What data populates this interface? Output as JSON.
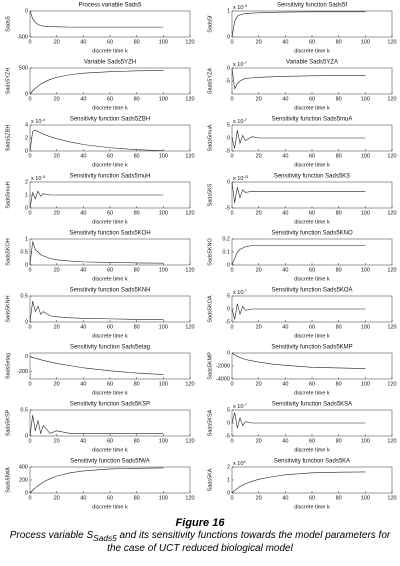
{
  "chart_data": [
    {
      "type": "line",
      "title": "Process variable Sads5",
      "ylabel": "Sads5",
      "xlabel": "discrete time k",
      "xlim": [
        0,
        120
      ],
      "xticks": [
        0,
        20,
        40,
        60,
        80,
        100,
        120
      ],
      "ylim": [
        -500,
        0
      ],
      "yticks": [
        -500,
        0
      ],
      "x": [
        0,
        2,
        4,
        6,
        8,
        10,
        15,
        20,
        30,
        40,
        60,
        80,
        100
      ],
      "values": [
        0,
        -150,
        -220,
        -260,
        -280,
        -290,
        -300,
        -305,
        -310,
        -310,
        -310,
        -310,
        -310
      ]
    },
    {
      "type": "line",
      "title": "Sensitivity function Sads5f",
      "ylabel": "Sads5f",
      "xlabel": "discrete time k",
      "multiplier": "x 10",
      "multiplier_exp": "-9",
      "xlim": [
        0,
        120
      ],
      "xticks": [
        0,
        20,
        40,
        60,
        80,
        100,
        120
      ],
      "ylim": [
        0,
        1
      ],
      "yticks": [
        0,
        1
      ],
      "x": [
        0,
        2,
        4,
        6,
        8,
        10,
        15,
        20,
        30,
        40,
        60,
        80,
        100
      ],
      "values": [
        0,
        0.6,
        0.8,
        0.85,
        0.88,
        0.9,
        0.92,
        0.93,
        0.95,
        0.96,
        0.97,
        0.97,
        0.97
      ]
    },
    {
      "type": "line",
      "title": "Variable Sads5YZH",
      "ylabel": "Sads5YZH",
      "xlabel": "discrete time k",
      "xlim": [
        0,
        120
      ],
      "xticks": [
        0,
        20,
        40,
        60,
        80,
        100,
        120
      ],
      "ylim": [
        0,
        500
      ],
      "yticks": [
        0,
        500
      ],
      "x": [
        0,
        2,
        4,
        6,
        8,
        10,
        15,
        20,
        30,
        40,
        60,
        80,
        100
      ],
      "values": [
        0,
        60,
        110,
        150,
        190,
        220,
        280,
        320,
        370,
        400,
        430,
        445,
        450
      ]
    },
    {
      "type": "line",
      "title": "Variable Sads5YZA",
      "ylabel": "Sads5YZA",
      "xlabel": "discrete time k",
      "multiplier": "x 10",
      "multiplier_exp": "-7",
      "xlim": [
        0,
        120
      ],
      "xticks": [
        0,
        20,
        40,
        60,
        80,
        100,
        120
      ],
      "ylim": [
        -10,
        0
      ],
      "yticks": [
        -5,
        0
      ],
      "x": [
        0,
        2,
        4,
        6,
        8,
        10,
        15,
        20,
        30,
        40,
        60,
        80,
        100
      ],
      "values": [
        0,
        -8,
        -6,
        -5,
        -4.5,
        -4,
        -3.8,
        -3.6,
        -3.4,
        -3.2,
        -3,
        -2.9,
        -2.8
      ]
    },
    {
      "type": "line",
      "title": "Sensitivity function Sads5ZBH",
      "ylabel": "Sads5ZBH",
      "xlabel": "discrete time k",
      "multiplier": "x 10",
      "multiplier_exp": "-4",
      "xlim": [
        0,
        120
      ],
      "xticks": [
        0,
        20,
        40,
        60,
        80,
        100,
        120
      ],
      "ylim": [
        0,
        4
      ],
      "yticks": [
        0,
        2,
        4
      ],
      "x": [
        0,
        2,
        4,
        6,
        8,
        10,
        15,
        20,
        30,
        40,
        60,
        80,
        100
      ],
      "values": [
        0,
        3,
        3.2,
        3,
        2.8,
        2.6,
        2.2,
        1.9,
        1.4,
        1,
        0.5,
        0.2,
        0.05
      ]
    },
    {
      "type": "line",
      "title": "Sensitivity function Sads5muA",
      "ylabel": "Sads5muA",
      "xlabel": "discrete time k",
      "multiplier": "x 10",
      "multiplier_exp": "-7",
      "xlim": [
        0,
        120
      ],
      "xticks": [
        0,
        20,
        40,
        60,
        80,
        100,
        120
      ],
      "ylim": [
        -5,
        5
      ],
      "yticks": [
        -5,
        0,
        5
      ],
      "x": [
        0,
        2,
        4,
        6,
        8,
        10,
        15,
        20,
        30,
        40,
        60,
        80,
        100
      ],
      "values": [
        0,
        -4,
        3,
        -2,
        1,
        -1,
        0.5,
        0,
        0,
        0,
        0,
        0,
        0
      ]
    },
    {
      "type": "line",
      "title": "Sensitivity function Sads5muH",
      "ylabel": "Sads5muH",
      "xlabel": "discrete time k",
      "multiplier": "x 10",
      "multiplier_exp": "-5",
      "xlim": [
        0,
        120
      ],
      "xticks": [
        0,
        20,
        40,
        60,
        80,
        100,
        120
      ],
      "ylim": [
        0,
        2
      ],
      "yticks": [
        0,
        1,
        2
      ],
      "x": [
        0,
        2,
        4,
        6,
        8,
        10,
        15,
        20,
        30,
        40,
        60,
        80,
        100
      ],
      "values": [
        0,
        1.2,
        0.7,
        1.3,
        0.9,
        1.1,
        1,
        1,
        1,
        1,
        1,
        1,
        1
      ]
    },
    {
      "type": "line",
      "title": "Sensitivity function Sads5KS",
      "ylabel": "Sads5KS",
      "xlabel": "discrete time k",
      "multiplier": "x 10",
      "multiplier_exp": "-11",
      "xlim": [
        0,
        120
      ],
      "xticks": [
        0,
        20,
        40,
        60,
        80,
        100,
        120
      ],
      "ylim": [
        -5,
        0
      ],
      "yticks": [
        -5,
        0
      ],
      "x": [
        0,
        2,
        4,
        6,
        8,
        10,
        15,
        20,
        30,
        40,
        60,
        80,
        100
      ],
      "values": [
        0,
        -4,
        -1,
        -3,
        -1.5,
        -2,
        -1.8,
        -1.8,
        -1.8,
        -1.8,
        -1.8,
        -1.8,
        -1.8
      ]
    },
    {
      "type": "line",
      "title": "Sensitivity function Sads5KOH",
      "ylabel": "Sads5KOH",
      "xlabel": "discrete time k",
      "xlim": [
        0,
        120
      ],
      "xticks": [
        0,
        20,
        40,
        60,
        80,
        100,
        120
      ],
      "ylim": [
        0,
        1
      ],
      "yticks": [
        0,
        0.5,
        1
      ],
      "x": [
        0,
        2,
        4,
        6,
        8,
        10,
        15,
        20,
        30,
        40,
        60,
        80,
        100
      ],
      "values": [
        0,
        0.9,
        0.6,
        0.5,
        0.4,
        0.35,
        0.25,
        0.2,
        0.15,
        0.12,
        0.1,
        0.08,
        0.07
      ]
    },
    {
      "type": "line",
      "title": "Sensitivity function Sads5KNO",
      "ylabel": "Sads5KNO",
      "xlabel": "discrete time k",
      "xlim": [
        0,
        120
      ],
      "xticks": [
        0,
        20,
        40,
        60,
        80,
        100,
        120
      ],
      "ylim": [
        0,
        0.2
      ],
      "yticks": [
        0,
        0.1,
        0.2
      ],
      "x": [
        0,
        2,
        4,
        6,
        8,
        10,
        15,
        20,
        30,
        40,
        60,
        80,
        100
      ],
      "values": [
        0,
        0.05,
        0.1,
        0.12,
        0.13,
        0.14,
        0.15,
        0.15,
        0.15,
        0.15,
        0.15,
        0.15,
        0.15
      ]
    },
    {
      "type": "line",
      "title": "Sensitivity function Sads5KNH",
      "ylabel": "Sads5KNH",
      "xlabel": "discrete time k",
      "xlim": [
        0,
        120
      ],
      "xticks": [
        0,
        20,
        40,
        60,
        80,
        100,
        120
      ],
      "ylim": [
        0,
        0.5
      ],
      "yticks": [
        0,
        0.5
      ],
      "x": [
        0,
        2,
        4,
        6,
        8,
        10,
        15,
        20,
        30,
        40,
        60,
        80,
        100
      ],
      "values": [
        0,
        0.4,
        0.2,
        0.3,
        0.15,
        0.2,
        0.12,
        0.1,
        0.08,
        0.07,
        0.06,
        0.05,
        0.05
      ]
    },
    {
      "type": "line",
      "title": "Sensitivity function Sads5KOA",
      "ylabel": "Sads5KOA",
      "xlabel": "discrete time k",
      "multiplier": "x 10",
      "multiplier_exp": "-7",
      "xlim": [
        0,
        120
      ],
      "xticks": [
        0,
        20,
        40,
        60,
        80,
        100,
        120
      ],
      "ylim": [
        -5,
        5
      ],
      "yticks": [
        -5,
        0,
        5
      ],
      "x": [
        0,
        2,
        4,
        6,
        8,
        10,
        15,
        20,
        30,
        40,
        60,
        80,
        100
      ],
      "values": [
        0,
        -4,
        2,
        -2,
        1,
        -0.5,
        0,
        0,
        0,
        0,
        0,
        0,
        0
      ]
    },
    {
      "type": "line",
      "title": "Sensitivity function Sads5etag",
      "ylabel": "Sads5etag",
      "xlabel": "discrete time k",
      "xlim": [
        0,
        120
      ],
      "xticks": [
        0,
        20,
        40,
        60,
        80,
        100,
        120
      ],
      "ylim": [
        -300,
        50
      ],
      "yticks": [
        -200,
        0
      ],
      "x": [
        0,
        2,
        4,
        6,
        8,
        10,
        15,
        20,
        30,
        40,
        60,
        80,
        100
      ],
      "values": [
        0,
        -10,
        -20,
        -30,
        -40,
        -50,
        -70,
        -90,
        -120,
        -150,
        -190,
        -220,
        -240
      ]
    },
    {
      "type": "line",
      "title": "Sensitivity function Sads5KMP",
      "ylabel": "Sads5KMP",
      "xlabel": "discrete time k",
      "xlim": [
        0,
        120
      ],
      "xticks": [
        0,
        20,
        40,
        60,
        80,
        100,
        120
      ],
      "ylim": [
        -4000,
        0
      ],
      "yticks": [
        -4000,
        -2000,
        0
      ],
      "x": [
        0,
        2,
        4,
        6,
        8,
        10,
        15,
        20,
        30,
        40,
        60,
        80,
        100
      ],
      "values": [
        0,
        -300,
        -500,
        -700,
        -850,
        -1000,
        -1200,
        -1400,
        -1700,
        -1900,
        -2200,
        -2300,
        -2400
      ]
    },
    {
      "type": "line",
      "title": "Sensitivity function Sads5KSP",
      "ylabel": "Sads5KSP",
      "xlabel": "discrete time k",
      "xlim": [
        0,
        120
      ],
      "xticks": [
        0,
        20,
        40,
        60,
        80,
        100,
        120
      ],
      "ylim": [
        0,
        0.5
      ],
      "yticks": [
        0,
        0.5
      ],
      "x": [
        0,
        2,
        4,
        6,
        8,
        10,
        15,
        20,
        30,
        40,
        60,
        80,
        100
      ],
      "values": [
        0,
        0.4,
        0.1,
        0.3,
        0.05,
        0.2,
        0.05,
        0.1,
        0.05,
        0.05,
        0.05,
        0.05,
        0.05
      ]
    },
    {
      "type": "line",
      "title": "Sensitivity function Sads5KSA",
      "ylabel": "Sads5KSA",
      "xlabel": "discrete time k",
      "multiplier": "x 10",
      "multiplier_exp": "-7",
      "xlim": [
        0,
        120
      ],
      "xticks": [
        0,
        20,
        40,
        60,
        80,
        100,
        120
      ],
      "ylim": [
        -5,
        5
      ],
      "yticks": [
        -5,
        0,
        5
      ],
      "x": [
        0,
        2,
        4,
        6,
        8,
        10,
        15,
        20,
        30,
        40,
        60,
        80,
        100
      ],
      "values": [
        0,
        4,
        -2,
        2,
        -1,
        0.5,
        0,
        0,
        0,
        0,
        0,
        0,
        0
      ]
    },
    {
      "type": "line",
      "title": "Sensitivity function Sads5fWA",
      "ylabel": "Sads5fWA",
      "xlabel": "discrete time k",
      "xlim": [
        0,
        120
      ],
      "xticks": [
        0,
        20,
        40,
        60,
        80,
        100,
        120
      ],
      "ylim": [
        0,
        400
      ],
      "yticks": [
        0,
        200,
        400
      ],
      "x": [
        0,
        2,
        4,
        6,
        8,
        10,
        15,
        20,
        30,
        40,
        60,
        80,
        100
      ],
      "values": [
        0,
        40,
        80,
        110,
        140,
        170,
        220,
        260,
        310,
        340,
        370,
        380,
        385
      ]
    },
    {
      "type": "line",
      "title": "Sensitivity function Sads5KA",
      "ylabel": "Sads5KA",
      "xlabel": "discrete time k",
      "multiplier": "x 10",
      "multiplier_exp": "4",
      "xlim": [
        0,
        120
      ],
      "xticks": [
        0,
        20,
        40,
        60,
        80,
        100,
        120
      ],
      "ylim": [
        0,
        2
      ],
      "yticks": [
        0,
        1,
        2
      ],
      "x": [
        0,
        2,
        4,
        6,
        8,
        10,
        15,
        20,
        30,
        40,
        60,
        80,
        100
      ],
      "values": [
        0,
        0.2,
        0.35,
        0.5,
        0.6,
        0.7,
        0.9,
        1.05,
        1.25,
        1.4,
        1.55,
        1.6,
        1.62
      ]
    }
  ],
  "caption": {
    "figure": "Figure 16",
    "text_start": "Process variable S",
    "text_sub": "Sads5",
    "text_end": " and its sensitivity functions towards the model parameters for the case of UCT reduced biological model"
  }
}
